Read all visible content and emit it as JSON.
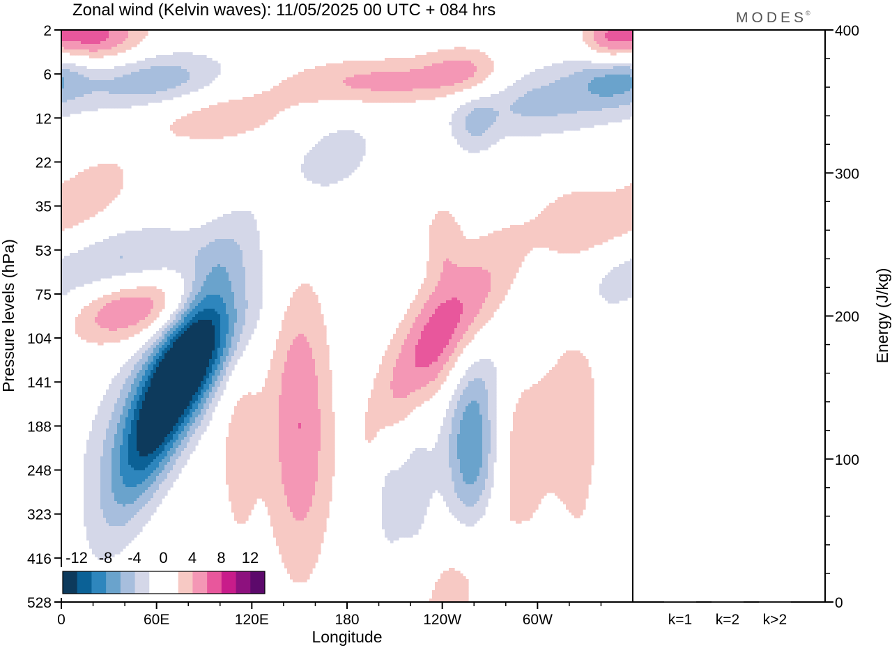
{
  "title": "Zonal wind (Kelvin waves):  11/05/2025  00 UTC  + 084 hrs",
  "brand": "MODES",
  "brand_mark": "©",
  "colors": {
    "neg": [
      "#0d3a5c",
      "#0b6196",
      "#2e86bd",
      "#6aa3cc",
      "#a7bedd",
      "#d4d7e8"
    ],
    "zero": "#ffffff",
    "pos": [
      "#f7c9c4",
      "#f497b5",
      "#e8579c",
      "#c81c8a",
      "#8d117e",
      "#5c096b"
    ]
  },
  "chart_data": [
    {
      "type": "heatmap",
      "title": "Zonal wind (Kelvin waves):  11/05/2025  00 UTC  + 084 hrs",
      "xlabel": "Longitude",
      "ylabel": "Pressure levels (hPa)",
      "x_ticks": [
        "0",
        "60E",
        "120E",
        "180",
        "120W",
        "60W"
      ],
      "x_tick_values": [
        0,
        60,
        120,
        180,
        240,
        300
      ],
      "xlim": [
        0,
        360
      ],
      "y_ticks": [
        "2",
        "6",
        "12",
        "22",
        "35",
        "53",
        "75",
        "104",
        "141",
        "188",
        "248",
        "323",
        "416",
        "528"
      ],
      "colorbar": {
        "labels": [
          "-12",
          "-8",
          "-4",
          "0",
          "4",
          "8",
          "12"
        ],
        "levels": [
          -14,
          -12,
          -10,
          -8,
          -6,
          -4,
          -2,
          2,
          4,
          6,
          8,
          10,
          12,
          14
        ]
      },
      "features": [
        {
          "lon": 70,
          "lev": 8.1,
          "value": -12,
          "dlon": 14,
          "dlev": 2.0,
          "tilt": 0.9
        },
        {
          "lon": 95,
          "lev": 7.3,
          "value": -6,
          "dlon": 18,
          "dlev": 1.2,
          "tilt": 1.2
        },
        {
          "lon": 52,
          "lev": 8.5,
          "value": -4,
          "dlon": 22,
          "dlev": 1.6,
          "tilt": 1.0
        },
        {
          "lon": 150,
          "lev": 9.0,
          "value": 6,
          "dlon": 14,
          "dlev": 2.4,
          "tilt": 0
        },
        {
          "lon": 112,
          "lev": 9.3,
          "value": 3,
          "dlon": 10,
          "dlev": 2.0,
          "tilt": 0
        },
        {
          "lon": 218,
          "lev": 7.8,
          "value": 4,
          "dlon": 14,
          "dlev": 1.5,
          "tilt": 0.8
        },
        {
          "lon": 248,
          "lev": 6.7,
          "value": 6,
          "dlon": 18,
          "dlev": 1.3,
          "tilt": 1.1
        },
        {
          "lon": 259,
          "lev": 9.5,
          "value": -8,
          "dlon": 12,
          "dlev": 1.4,
          "tilt": 0
        },
        {
          "lon": 222,
          "lev": 10.0,
          "value": -3,
          "dlon": 10,
          "dlev": 2.0,
          "tilt": 0
        },
        {
          "lon": 287,
          "lev": 9.3,
          "value": 3,
          "dlon": 14,
          "dlev": 2.2,
          "tilt": 0
        },
        {
          "lon": 322,
          "lev": 8.8,
          "value": 3,
          "dlon": 16,
          "dlev": 2.8,
          "tilt": 0
        },
        {
          "lon": 287,
          "lev": 7.0,
          "value": -3,
          "dlon": 18,
          "dlev": 1.0,
          "tilt": 0.9
        },
        {
          "lon": 345,
          "lev": 6.0,
          "value": -3,
          "dlon": 22,
          "dlev": 0.8,
          "tilt": 0
        },
        {
          "lon": 335,
          "lev": 4.6,
          "value": 3,
          "dlon": 26,
          "dlev": 0.8,
          "tilt": 0
        },
        {
          "lon": 240,
          "lev": 4.7,
          "value": 3,
          "dlon": 8,
          "dlev": 0.6,
          "tilt": 0
        },
        {
          "lon": 45,
          "lev": 6.3,
          "value": 7,
          "dlon": 30,
          "dlev": 0.6,
          "tilt": 1.4
        },
        {
          "lon": 40,
          "lev": 5.3,
          "value": -5,
          "dlon": 36,
          "dlev": 0.6,
          "tilt": 1.4
        },
        {
          "lon": 20,
          "lev": 3.7,
          "value": 3,
          "dlon": 18,
          "dlev": 0.7,
          "tilt": 1.2
        },
        {
          "lon": 170,
          "lev": 2.9,
          "value": -3,
          "dlon": 22,
          "dlev": 0.8,
          "tilt": 1.0
        },
        {
          "lon": 60,
          "lev": 1.2,
          "value": -6,
          "dlon": 35,
          "dlev": 0.5,
          "tilt": 0.7
        },
        {
          "lon": 15,
          "lev": 0.2,
          "value": 8,
          "dlon": 25,
          "dlev": 0.45,
          "tilt": 0.6
        },
        {
          "lon": 95,
          "lev": 1.9,
          "value": 4,
          "dlon": 35,
          "dlev": 0.5,
          "tilt": 0.7
        },
        {
          "lon": 205,
          "lev": 1.2,
          "value": 5,
          "dlon": 45,
          "dlev": 0.4,
          "tilt": 0.2
        },
        {
          "lon": 300,
          "lev": 1.6,
          "value": -5,
          "dlon": 38,
          "dlev": 0.6,
          "tilt": 0.3
        },
        {
          "lon": 350,
          "lev": 0.9,
          "value": -7,
          "dlon": 18,
          "dlev": 0.5,
          "tilt": 0.3
        },
        {
          "lon": 345,
          "lev": 0.3,
          "value": 5,
          "dlon": 12,
          "dlev": 0.5,
          "tilt": 0
        },
        {
          "lon": 255,
          "lev": 0.9,
          "value": 4,
          "dlon": 18,
          "dlev": 0.4,
          "tilt": 0
        },
        {
          "lon": 260,
          "lev": 2.2,
          "value": -3,
          "dlon": 10,
          "dlev": 0.5,
          "tilt": 0
        },
        {
          "lon": 245,
          "lev": 12.7,
          "value": 3,
          "dlon": 20,
          "dlev": 1.2,
          "tilt": 1.0
        },
        {
          "lon": 308,
          "lev": 12.3,
          "value": -3,
          "dlon": 8,
          "dlev": 1.0,
          "tilt": 0
        },
        {
          "lon": 288,
          "lev": 12.5,
          "value": -2.5,
          "dlon": 6,
          "dlev": 0.8,
          "tilt": 0
        },
        {
          "lon": 205,
          "lev": 10.4,
          "value": -2.5,
          "dlon": 6,
          "dlev": 1.2,
          "tilt": 0
        }
      ]
    },
    {
      "type": "bar",
      "categories": [
        "k=1",
        "k=2",
        "k>2"
      ],
      "values": [
        0.5,
        0.4,
        0.3
      ],
      "ylabel": "Energy (J/kg)",
      "ylim": [
        0,
        400
      ],
      "y_ticks": [
        "0",
        "100",
        "200",
        "300",
        "400"
      ]
    }
  ]
}
